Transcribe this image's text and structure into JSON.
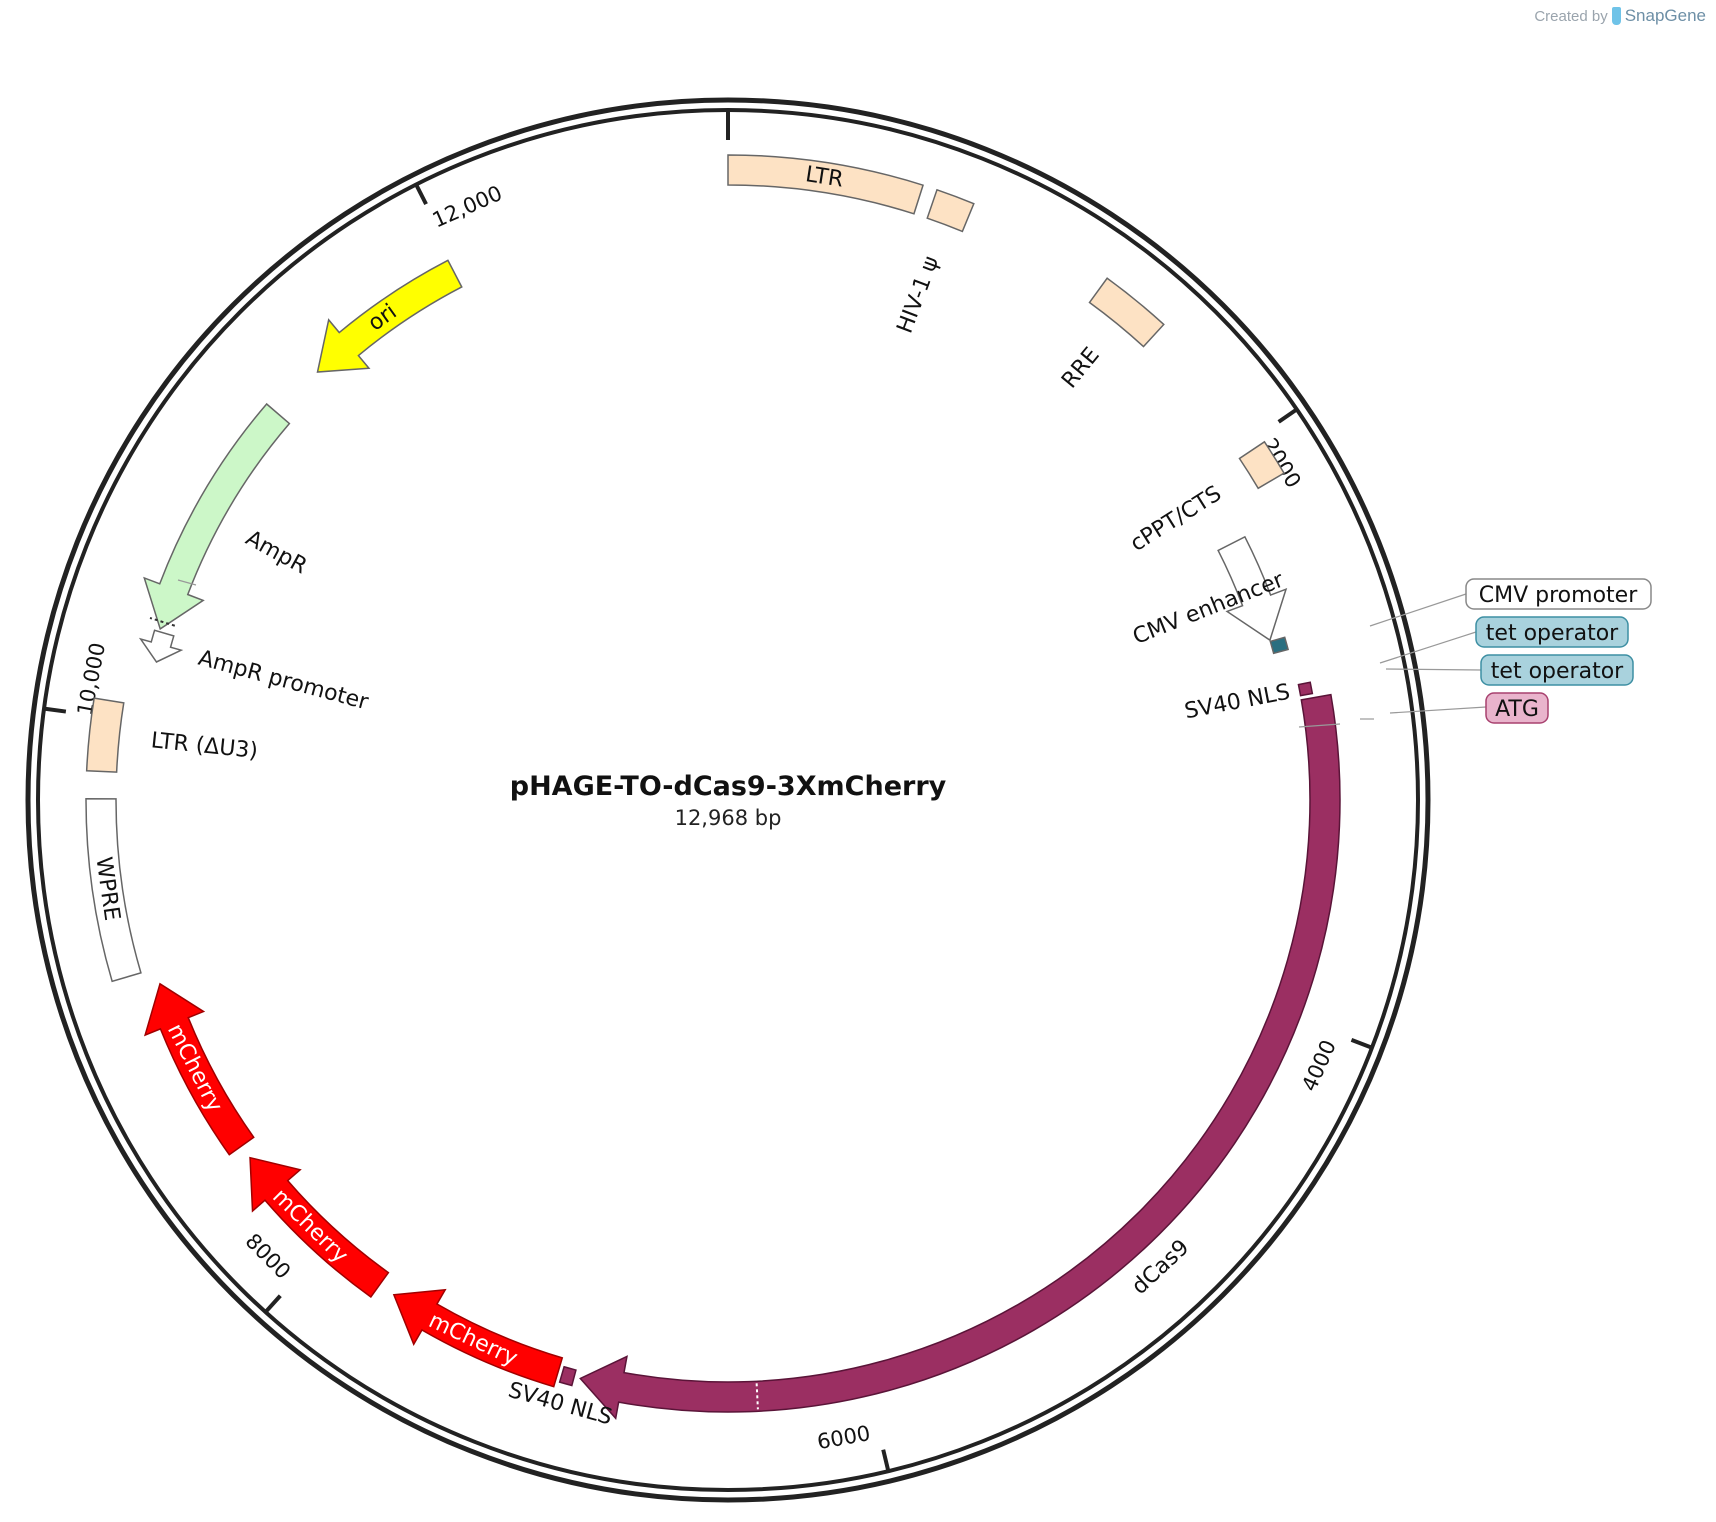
{
  "credit": {
    "prefix": "Created by",
    "brand": "SnapGene"
  },
  "plasmid": {
    "name": "pHAGE-TO-dCas9-3XmCherry",
    "size_label": "12,968 bp",
    "length": 12968
  },
  "ticks": [
    {
      "pos": 0,
      "label": ""
    },
    {
      "pos": 2000,
      "label": "2000"
    },
    {
      "pos": 4000,
      "label": "4000"
    },
    {
      "pos": 6000,
      "label": "6000"
    },
    {
      "pos": 8000,
      "label": "8000"
    },
    {
      "pos": 10000,
      "label": "10,000"
    },
    {
      "pos": 12000,
      "label": "12,000"
    }
  ],
  "features": [
    {
      "id": "ltr",
      "label": "LTR",
      "start": 0,
      "end": 634,
      "type": "box",
      "color": "#fde2c4"
    },
    {
      "id": "hiv-psi",
      "label": "HIV-1 ψ",
      "start": 681,
      "end": 807,
      "type": "box",
      "color": "#fde2c4"
    },
    {
      "id": "rre",
      "label": "RRE",
      "start": 1297,
      "end": 1531,
      "type": "box",
      "color": "#fde2c4"
    },
    {
      "id": "cppt",
      "label": "cPPT/CTS",
      "start": 2027,
      "end": 2145,
      "type": "box",
      "color": "#fde2c4"
    },
    {
      "id": "cmv-enhancer",
      "label": "CMV enhancer",
      "start": 2270,
      "end": 2650,
      "type": "arrow",
      "dir": 1,
      "color": "#ffffff"
    },
    {
      "id": "tet-operator",
      "label": "tet operator",
      "start": 2655,
      "end": 2700,
      "type": "box",
      "color": "#2a6f80"
    },
    {
      "id": "sv40-nls-1",
      "label": "SV40 NLS",
      "start": 2830,
      "end": 2870,
      "type": "box",
      "color": "#9b2f62"
    },
    {
      "id": "dcas9",
      "label": "dCas9",
      "start": 2885,
      "end": 7000,
      "type": "arrow",
      "dir": 1,
      "color": "#9b2f62"
    },
    {
      "id": "sv40-nls-2",
      "label": "SV40 NLS",
      "start": 7022,
      "end": 7065,
      "type": "box",
      "color": "#9b2f62"
    },
    {
      "id": "mcherry-1",
      "label": "mCherry",
      "start": 7080,
      "end": 7710,
      "type": "arrow",
      "dir": 1,
      "color": "#ff0000"
    },
    {
      "id": "mcherry-2",
      "label": "mCherry",
      "start": 7770,
      "end": 8400,
      "type": "arrow",
      "dir": 1,
      "color": "#ff0000"
    },
    {
      "id": "mcherry-3",
      "label": "mCherry",
      "start": 8450,
      "end": 9080,
      "type": "arrow",
      "dir": 1,
      "color": "#ff0000"
    },
    {
      "id": "wpre",
      "label": "WPRE",
      "start": 9135,
      "end": 9730,
      "type": "box",
      "color": "#ffffff"
    },
    {
      "id": "ltr-du3",
      "label": "LTR (ΔU3)",
      "start": 9820,
      "end": 10055,
      "type": "box",
      "color": "#fde2c4"
    },
    {
      "id": "ampr-promoter",
      "label": "AmpR promoter",
      "start": 10215,
      "end": 10320,
      "type": "arrow",
      "dir": -1,
      "color": "#ffffff"
    },
    {
      "id": "ampr",
      "label": "AmpR",
      "start": 10330,
      "end": 11190,
      "type": "arrow",
      "dir": -1,
      "color": "#ccf7c8"
    },
    {
      "id": "ori",
      "label": "ori",
      "start": 11390,
      "end": 11980,
      "type": "arrow",
      "dir": -1,
      "color": "#ffff00"
    }
  ],
  "callouts": [
    {
      "id": "callout-cmv-promoter",
      "label": "CMV promoter",
      "fill": "#ffffff",
      "stroke": "#888888"
    },
    {
      "id": "callout-tet-operator-1",
      "label": "tet operator",
      "fill": "#a9d2dd",
      "stroke": "#3d8fa3"
    },
    {
      "id": "callout-tet-operator-2",
      "label": "tet operator",
      "fill": "#a9d2dd",
      "stroke": "#3d8fa3"
    },
    {
      "id": "callout-atg",
      "label": "ATG",
      "fill": "#e9b4cc",
      "stroke": "#a8416f"
    }
  ]
}
